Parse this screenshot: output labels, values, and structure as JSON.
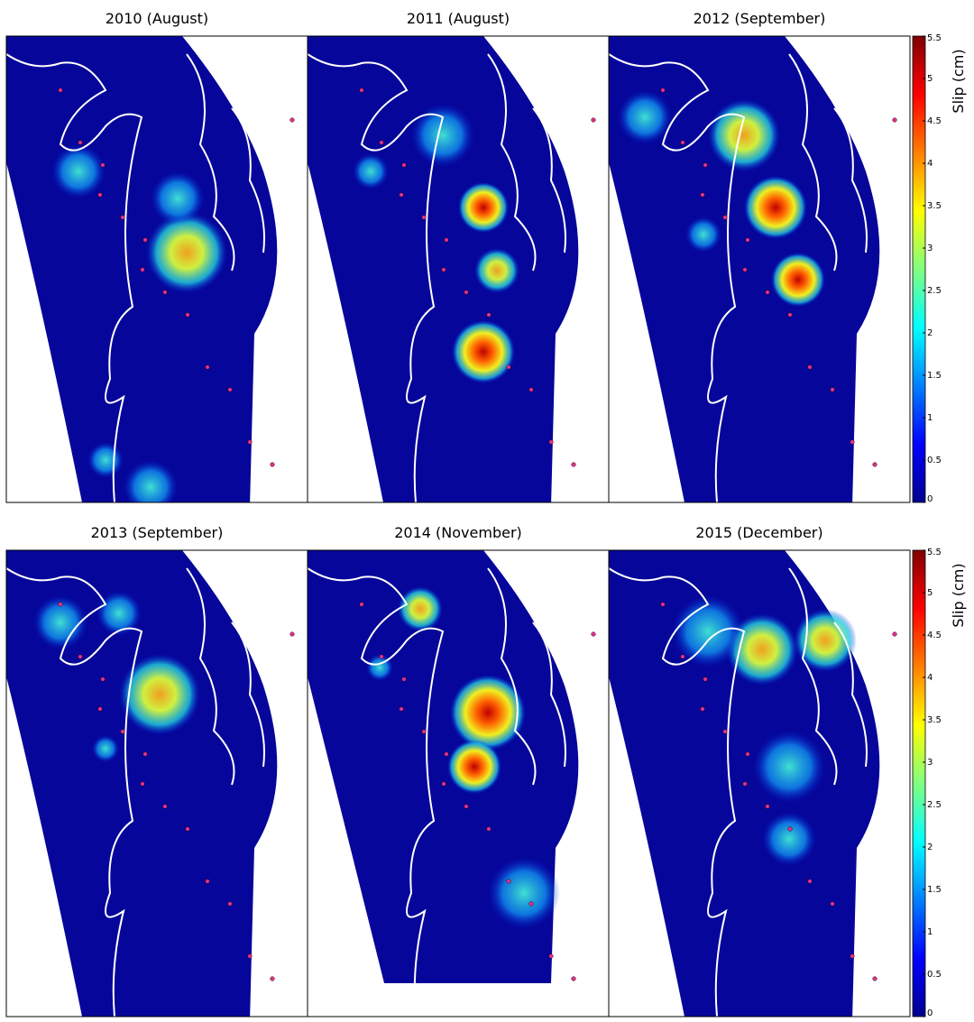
{
  "panels": [
    {
      "title": "2010 (August)"
    },
    {
      "title": "2011 (August)"
    },
    {
      "title": "2012 (September)"
    },
    {
      "title": "2013 (September)"
    },
    {
      "title": "2014 (November)"
    },
    {
      "title": "2015 (December)"
    }
  ],
  "colorbars": [
    {
      "label": "Slip (cm)",
      "ylim": [
        0,
        5.5
      ],
      "yticks": [
        0,
        0.5,
        1,
        1.5,
        2,
        2.5,
        3,
        3.5,
        4,
        4.5,
        5,
        5.5
      ]
    },
    {
      "label": "Slip (cm)",
      "ylim": [
        0,
        5.5
      ],
      "yticks": [
        0,
        0.5,
        1,
        1.5,
        2,
        2.5,
        3,
        3.5,
        4,
        4.5,
        5,
        5.5
      ]
    }
  ]
}
